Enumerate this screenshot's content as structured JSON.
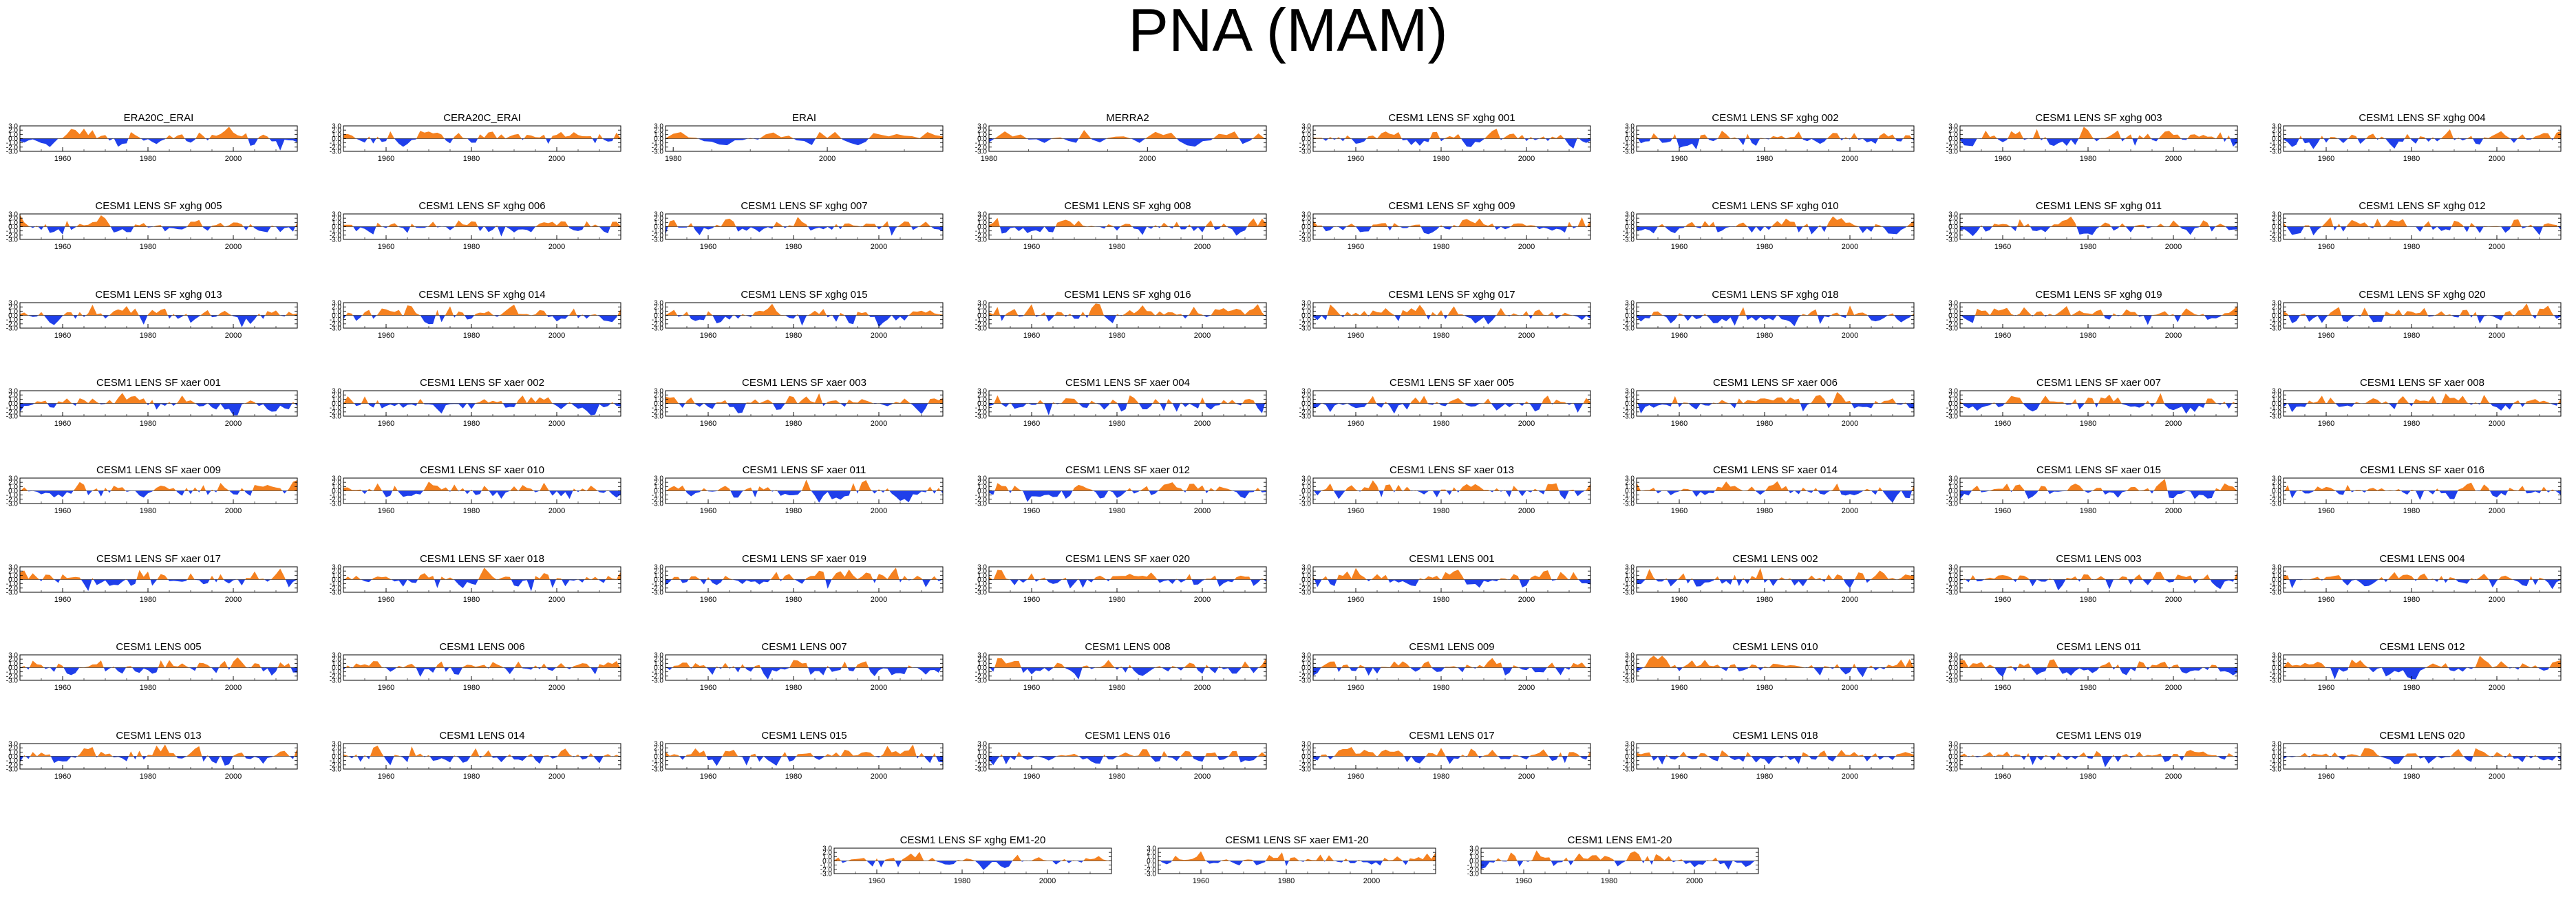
{
  "title": "PNA (MAM)",
  "colors": {
    "positive": "#F5811F",
    "negative": "#1F3FEA",
    "axis": "#000000"
  },
  "chart_data": {
    "type": "area",
    "title": "PNA (MAM)",
    "ylim": [
      -3.0,
      3.0
    ],
    "y_ticks": [
      "3.0",
      "2.0",
      "1.0",
      "0.0",
      "-1.0",
      "-2.0",
      "-3.0"
    ],
    "x_ticks": [
      1960,
      1980,
      2000
    ],
    "x_ticks_late": [
      1980,
      2000
    ],
    "series_note": "Standardized PNA index time series; values above 0 filled orange, below 0 filled blue",
    "panels": [
      {
        "name": "ERA20C_ERAI",
        "x_start": 1950,
        "x_end": 2015,
        "xticks": [
          1960,
          1980,
          2000
        ]
      },
      {
        "name": "CERA20C_ERAI",
        "x_start": 1950,
        "x_end": 2015,
        "xticks": [
          1960,
          1980,
          2000
        ]
      },
      {
        "name": "ERAI",
        "x_start": 1979,
        "x_end": 2015,
        "xticks": [
          1980,
          2000
        ]
      },
      {
        "name": "MERRA2",
        "x_start": 1980,
        "x_end": 2015,
        "xticks": [
          1980,
          2000
        ]
      },
      {
        "name": "CESM1 LENS SF xghg 001",
        "x_start": 1950,
        "x_end": 2015,
        "xticks": [
          1960,
          1980,
          2000
        ]
      },
      {
        "name": "CESM1 LENS SF xghg 002",
        "x_start": 1950,
        "x_end": 2015,
        "xticks": [
          1960,
          1980,
          2000
        ]
      },
      {
        "name": "CESM1 LENS SF xghg 003",
        "x_start": 1950,
        "x_end": 2015,
        "xticks": [
          1960,
          1980,
          2000
        ]
      },
      {
        "name": "CESM1 LENS SF xghg 004",
        "x_start": 1950,
        "x_end": 2015,
        "xticks": [
          1960,
          1980,
          2000
        ]
      },
      {
        "name": "CESM1 LENS SF xghg 005",
        "x_start": 1950,
        "x_end": 2015,
        "xticks": [
          1960,
          1980,
          2000
        ]
      },
      {
        "name": "CESM1 LENS SF xghg 006",
        "x_start": 1950,
        "x_end": 2015,
        "xticks": [
          1960,
          1980,
          2000
        ]
      },
      {
        "name": "CESM1 LENS SF xghg 007",
        "x_start": 1950,
        "x_end": 2015,
        "xticks": [
          1960,
          1980,
          2000
        ]
      },
      {
        "name": "CESM1 LENS SF xghg 008",
        "x_start": 1950,
        "x_end": 2015,
        "xticks": [
          1960,
          1980,
          2000
        ]
      },
      {
        "name": "CESM1 LENS SF xghg 009",
        "x_start": 1950,
        "x_end": 2015,
        "xticks": [
          1960,
          1980,
          2000
        ]
      },
      {
        "name": "CESM1 LENS SF xghg 010",
        "x_start": 1950,
        "x_end": 2015,
        "xticks": [
          1960,
          1980,
          2000
        ]
      },
      {
        "name": "CESM1 LENS SF xghg 011",
        "x_start": 1950,
        "x_end": 2015,
        "xticks": [
          1960,
          1980,
          2000
        ]
      },
      {
        "name": "CESM1 LENS SF xghg 012",
        "x_start": 1950,
        "x_end": 2015,
        "xticks": [
          1960,
          1980,
          2000
        ]
      },
      {
        "name": "CESM1 LENS SF xghg 013",
        "x_start": 1950,
        "x_end": 2015,
        "xticks": [
          1960,
          1980,
          2000
        ]
      },
      {
        "name": "CESM1 LENS SF xghg 014",
        "x_start": 1950,
        "x_end": 2015,
        "xticks": [
          1960,
          1980,
          2000
        ]
      },
      {
        "name": "CESM1 LENS SF xghg 015",
        "x_start": 1950,
        "x_end": 2015,
        "xticks": [
          1960,
          1980,
          2000
        ]
      },
      {
        "name": "CESM1 LENS SF xghg 016",
        "x_start": 1950,
        "x_end": 2015,
        "xticks": [
          1960,
          1980,
          2000
        ]
      },
      {
        "name": "CESM1 LENS SF xghg 017",
        "x_start": 1950,
        "x_end": 2015,
        "xticks": [
          1960,
          1980,
          2000
        ]
      },
      {
        "name": "CESM1 LENS SF xghg 018",
        "x_start": 1950,
        "x_end": 2015,
        "xticks": [
          1960,
          1980,
          2000
        ]
      },
      {
        "name": "CESM1 LENS SF xghg 019",
        "x_start": 1950,
        "x_end": 2015,
        "xticks": [
          1960,
          1980,
          2000
        ]
      },
      {
        "name": "CESM1 LENS SF xghg 020",
        "x_start": 1950,
        "x_end": 2015,
        "xticks": [
          1960,
          1980,
          2000
        ]
      },
      {
        "name": "CESM1 LENS SF xaer 001",
        "x_start": 1950,
        "x_end": 2015,
        "xticks": [
          1960,
          1980,
          2000
        ]
      },
      {
        "name": "CESM1 LENS SF xaer 002",
        "x_start": 1950,
        "x_end": 2015,
        "xticks": [
          1960,
          1980,
          2000
        ]
      },
      {
        "name": "CESM1 LENS SF xaer 003",
        "x_start": 1950,
        "x_end": 2015,
        "xticks": [
          1960,
          1980,
          2000
        ]
      },
      {
        "name": "CESM1 LENS SF xaer 004",
        "x_start": 1950,
        "x_end": 2015,
        "xticks": [
          1960,
          1980,
          2000
        ]
      },
      {
        "name": "CESM1 LENS SF xaer 005",
        "x_start": 1950,
        "x_end": 2015,
        "xticks": [
          1960,
          1980,
          2000
        ]
      },
      {
        "name": "CESM1 LENS SF xaer 006",
        "x_start": 1950,
        "x_end": 2015,
        "xticks": [
          1960,
          1980,
          2000
        ]
      },
      {
        "name": "CESM1 LENS SF xaer 007",
        "x_start": 1950,
        "x_end": 2015,
        "xticks": [
          1960,
          1980,
          2000
        ]
      },
      {
        "name": "CESM1 LENS SF xaer 008",
        "x_start": 1950,
        "x_end": 2015,
        "xticks": [
          1960,
          1980,
          2000
        ]
      },
      {
        "name": "CESM1 LENS SF xaer 009",
        "x_start": 1950,
        "x_end": 2015,
        "xticks": [
          1960,
          1980,
          2000
        ]
      },
      {
        "name": "CESM1 LENS SF xaer 010",
        "x_start": 1950,
        "x_end": 2015,
        "xticks": [
          1960,
          1980,
          2000
        ]
      },
      {
        "name": "CESM1 LENS SF xaer 011",
        "x_start": 1950,
        "x_end": 2015,
        "xticks": [
          1960,
          1980,
          2000
        ]
      },
      {
        "name": "CESM1 LENS SF xaer 012",
        "x_start": 1950,
        "x_end": 2015,
        "xticks": [
          1960,
          1980,
          2000
        ]
      },
      {
        "name": "CESM1 LENS SF xaer 013",
        "x_start": 1950,
        "x_end": 2015,
        "xticks": [
          1960,
          1980,
          2000
        ]
      },
      {
        "name": "CESM1 LENS SF xaer 014",
        "x_start": 1950,
        "x_end": 2015,
        "xticks": [
          1960,
          1980,
          2000
        ]
      },
      {
        "name": "CESM1 LENS SF xaer 015",
        "x_start": 1950,
        "x_end": 2015,
        "xticks": [
          1960,
          1980,
          2000
        ]
      },
      {
        "name": "CESM1 LENS SF xaer 016",
        "x_start": 1950,
        "x_end": 2015,
        "xticks": [
          1960,
          1980,
          2000
        ]
      },
      {
        "name": "CESM1 LENS SF xaer 017",
        "x_start": 1950,
        "x_end": 2015,
        "xticks": [
          1960,
          1980,
          2000
        ]
      },
      {
        "name": "CESM1 LENS SF xaer 018",
        "x_start": 1950,
        "x_end": 2015,
        "xticks": [
          1960,
          1980,
          2000
        ]
      },
      {
        "name": "CESM1 LENS SF xaer 019",
        "x_start": 1950,
        "x_end": 2015,
        "xticks": [
          1960,
          1980,
          2000
        ]
      },
      {
        "name": "CESM1 LENS SF xaer 020",
        "x_start": 1950,
        "x_end": 2015,
        "xticks": [
          1960,
          1980,
          2000
        ]
      },
      {
        "name": "CESM1 LENS 001",
        "x_start": 1950,
        "x_end": 2015,
        "xticks": [
          1960,
          1980,
          2000
        ]
      },
      {
        "name": "CESM1 LENS 002",
        "x_start": 1950,
        "x_end": 2015,
        "xticks": [
          1960,
          1980,
          2000
        ]
      },
      {
        "name": "CESM1 LENS 003",
        "x_start": 1950,
        "x_end": 2015,
        "xticks": [
          1960,
          1980,
          2000
        ]
      },
      {
        "name": "CESM1 LENS 004",
        "x_start": 1950,
        "x_end": 2015,
        "xticks": [
          1960,
          1980,
          2000
        ]
      },
      {
        "name": "CESM1 LENS 005",
        "x_start": 1950,
        "x_end": 2015,
        "xticks": [
          1960,
          1980,
          2000
        ]
      },
      {
        "name": "CESM1 LENS 006",
        "x_start": 1950,
        "x_end": 2015,
        "xticks": [
          1960,
          1980,
          2000
        ]
      },
      {
        "name": "CESM1 LENS 007",
        "x_start": 1950,
        "x_end": 2015,
        "xticks": [
          1960,
          1980,
          2000
        ]
      },
      {
        "name": "CESM1 LENS 008",
        "x_start": 1950,
        "x_end": 2015,
        "xticks": [
          1960,
          1980,
          2000
        ]
      },
      {
        "name": "CESM1 LENS 009",
        "x_start": 1950,
        "x_end": 2015,
        "xticks": [
          1960,
          1980,
          2000
        ]
      },
      {
        "name": "CESM1 LENS 010",
        "x_start": 1950,
        "x_end": 2015,
        "xticks": [
          1960,
          1980,
          2000
        ]
      },
      {
        "name": "CESM1 LENS 011",
        "x_start": 1950,
        "x_end": 2015,
        "xticks": [
          1960,
          1980,
          2000
        ]
      },
      {
        "name": "CESM1 LENS 012",
        "x_start": 1950,
        "x_end": 2015,
        "xticks": [
          1960,
          1980,
          2000
        ]
      },
      {
        "name": "CESM1 LENS 013",
        "x_start": 1950,
        "x_end": 2015,
        "xticks": [
          1960,
          1980,
          2000
        ]
      },
      {
        "name": "CESM1 LENS 014",
        "x_start": 1950,
        "x_end": 2015,
        "xticks": [
          1960,
          1980,
          2000
        ]
      },
      {
        "name": "CESM1 LENS 015",
        "x_start": 1950,
        "x_end": 2015,
        "xticks": [
          1960,
          1980,
          2000
        ]
      },
      {
        "name": "CESM1 LENS 016",
        "x_start": 1950,
        "x_end": 2015,
        "xticks": [
          1960,
          1980,
          2000
        ]
      },
      {
        "name": "CESM1 LENS 017",
        "x_start": 1950,
        "x_end": 2015,
        "xticks": [
          1960,
          1980,
          2000
        ]
      },
      {
        "name": "CESM1 LENS 018",
        "x_start": 1950,
        "x_end": 2015,
        "xticks": [
          1960,
          1980,
          2000
        ]
      },
      {
        "name": "CESM1 LENS 019",
        "x_start": 1950,
        "x_end": 2015,
        "xticks": [
          1960,
          1980,
          2000
        ]
      },
      {
        "name": "CESM1 LENS 020",
        "x_start": 1950,
        "x_end": 2015,
        "xticks": [
          1960,
          1980,
          2000
        ]
      },
      {
        "name": "CESM1 LENS SF xghg EM1-20",
        "x_start": 1950,
        "x_end": 2015,
        "xticks": [
          1960,
          1980,
          2000
        ]
      },
      {
        "name": "CESM1 LENS SF xaer EM1-20",
        "x_start": 1950,
        "x_end": 2015,
        "xticks": [
          1960,
          1980,
          2000
        ]
      },
      {
        "name": "CESM1 LENS EM1-20",
        "x_start": 1950,
        "x_end": 2015,
        "xticks": [
          1960,
          1980,
          2000
        ]
      }
    ]
  }
}
